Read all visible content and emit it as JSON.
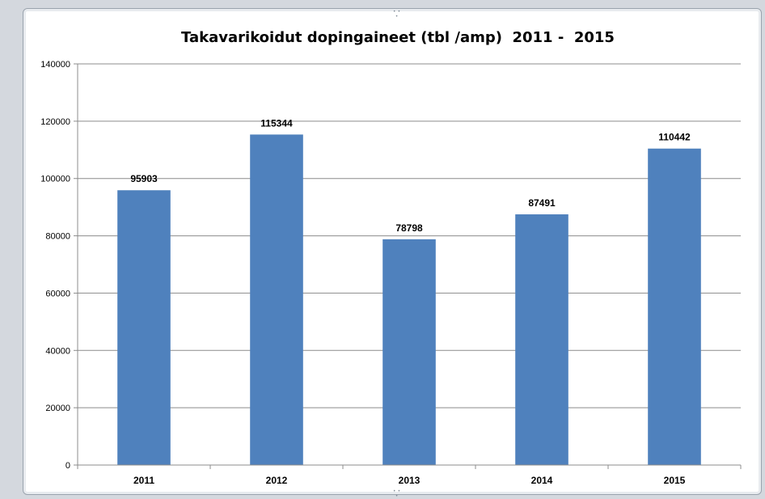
{
  "chart_data": {
    "type": "bar",
    "title": "Takavarikoidut dopingaineet (tbl /amp)  2011 -  2015",
    "xlabel": "",
    "ylabel": "",
    "categories": [
      "2011",
      "2012",
      "2013",
      "2014",
      "2015"
    ],
    "values": [
      95903,
      115344,
      78798,
      87491,
      110442
    ],
    "data_labels": [
      "95903",
      "115344",
      "78798",
      "87491",
      "110442"
    ],
    "ylim": [
      0,
      140000
    ],
    "yticks": [
      0,
      20000,
      40000,
      60000,
      80000,
      100000,
      120000,
      140000
    ],
    "ytick_labels": [
      "0",
      "20000",
      "40000",
      "60000",
      "80000",
      "100000",
      "120000",
      "140000"
    ],
    "grid": true,
    "legend": "none",
    "bar_color": "#4f81bd",
    "gridline_color": "#8c8c8c"
  }
}
